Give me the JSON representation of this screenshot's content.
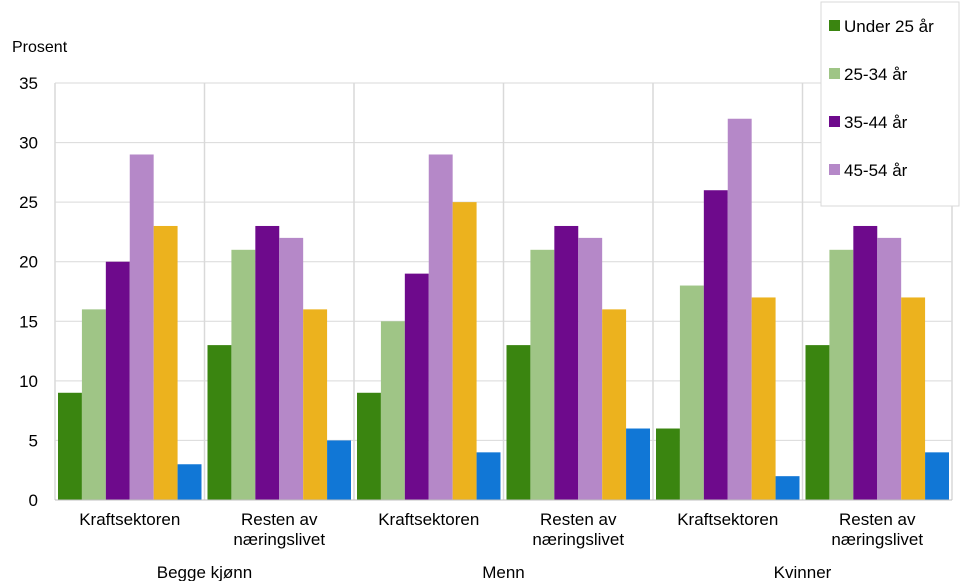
{
  "chart_data": {
    "type": "bar",
    "ylabel": "Prosent",
    "ylim": [
      0,
      35
    ],
    "yticks": [
      0,
      5,
      10,
      15,
      20,
      25,
      30,
      35
    ],
    "grid": true,
    "legend_position": "top-right",
    "groups": [
      {
        "label": "Begge kjønn",
        "categories": [
          [
            "Kraftsektoren"
          ],
          [
            "Resten av",
            "næringslivet"
          ]
        ]
      },
      {
        "label": "Menn",
        "categories": [
          [
            "Kraftsektoren"
          ],
          [
            "Resten av",
            "næringslivet"
          ]
        ]
      },
      {
        "label": "Kvinner",
        "categories": [
          [
            "Kraftsektoren"
          ],
          [
            "Resten av",
            "næringslivet"
          ]
        ]
      }
    ],
    "series": [
      {
        "name": "Under 25 år",
        "color": "#3a8510",
        "values": [
          9,
          13,
          9,
          13,
          6,
          13
        ]
      },
      {
        "name": "25-34 år",
        "color": "#9fc586",
        "values": [
          16,
          21,
          15,
          21,
          18,
          21
        ]
      },
      {
        "name": "35-44 år",
        "color": "#6e0a8c",
        "values": [
          20,
          23,
          19,
          23,
          26,
          23
        ]
      },
      {
        "name": "45-54 år",
        "color": "#b588c8",
        "values": [
          29,
          22,
          29,
          22,
          32,
          22
        ]
      },
      {
        "name": "",
        "color": "#ecb21e",
        "values": [
          23,
          16,
          25,
          16,
          17,
          17
        ]
      },
      {
        "name": "",
        "color": "#1177d6",
        "values": [
          3,
          5,
          4,
          6,
          2,
          4
        ]
      }
    ]
  }
}
